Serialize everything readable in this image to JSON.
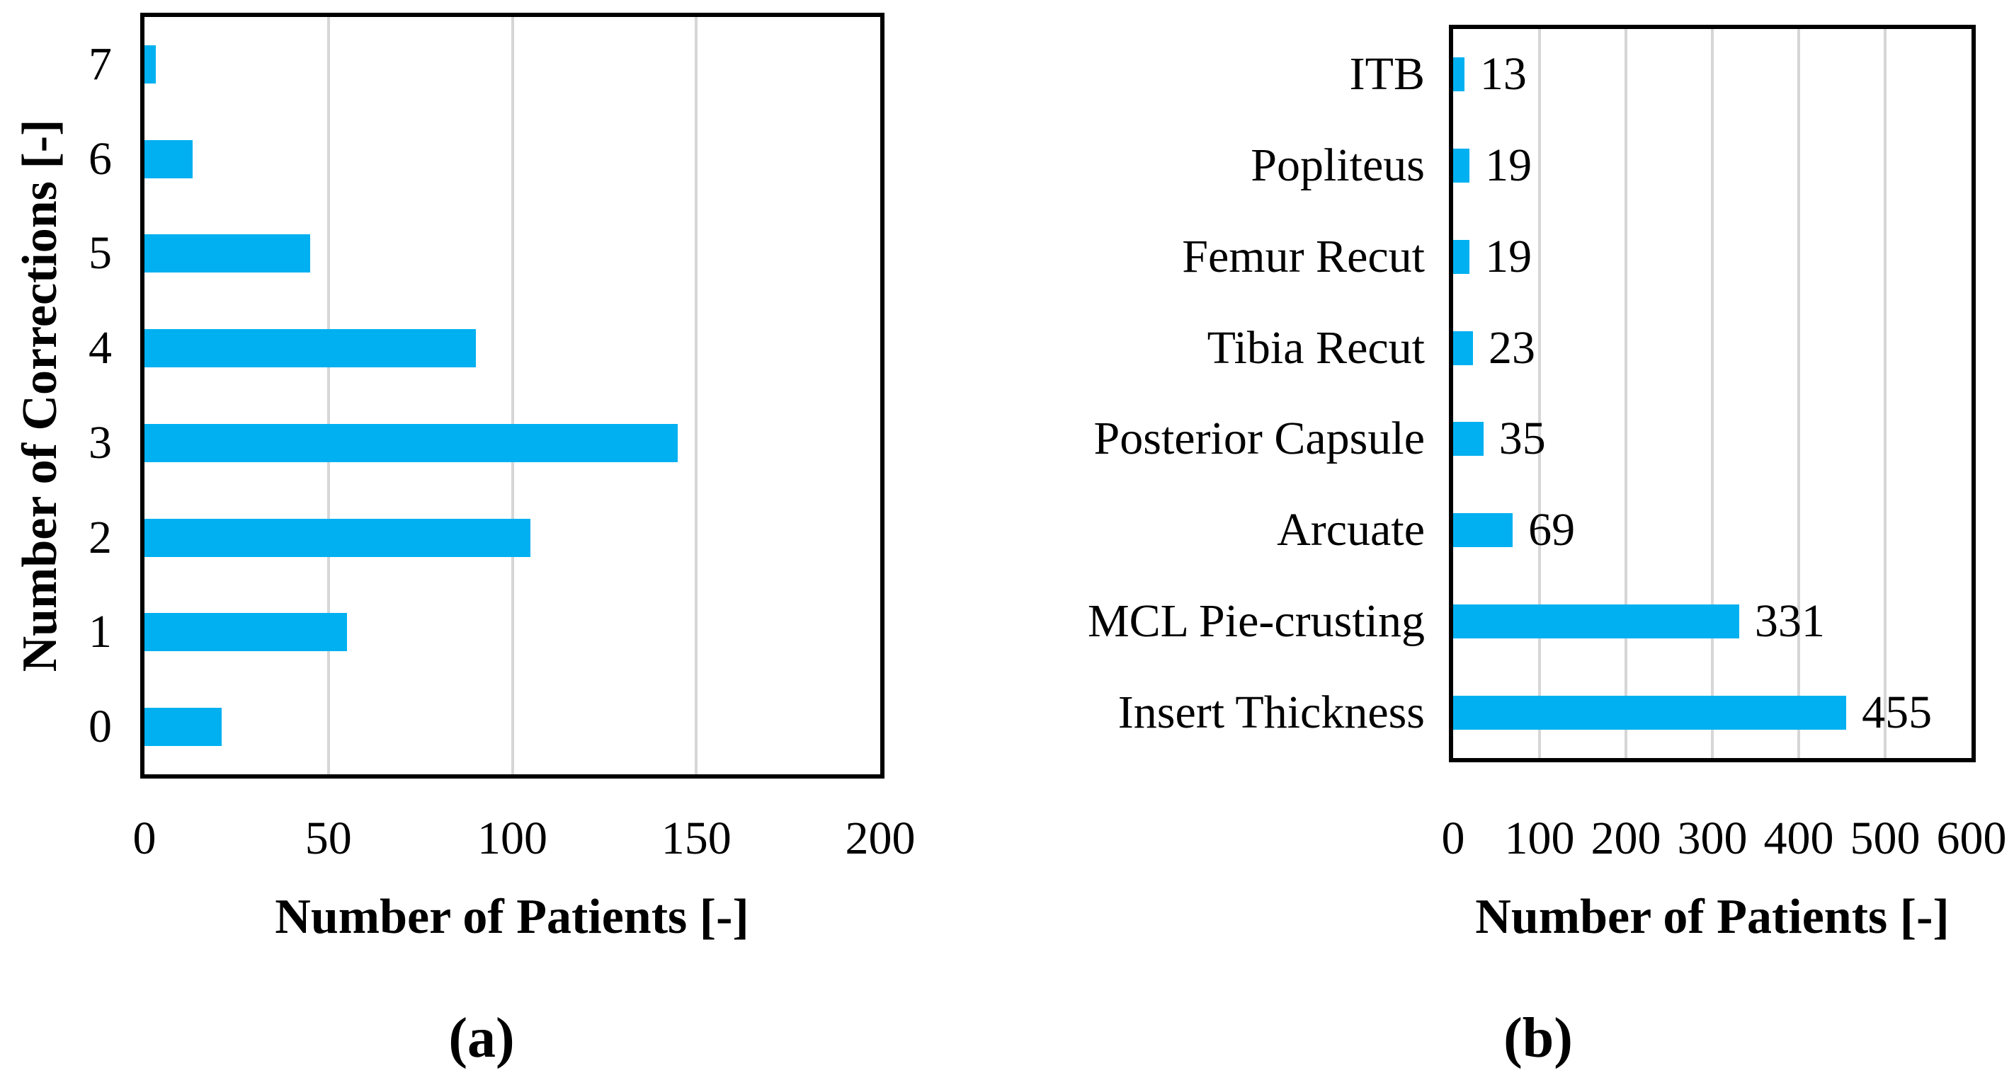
{
  "colors": {
    "bar": "#00B0F0",
    "gridline": "#D6D6D6",
    "plot_border": "#000000",
    "background": "#FFFFFF",
    "text": "#000000"
  },
  "chart_data": [
    {
      "panel": "a",
      "type": "bar",
      "orientation": "horizontal",
      "title": "",
      "xlabel": "Number of Patients [-]",
      "ylabel": "Number of Corrections [-]",
      "caption": "(a)",
      "category_order": "top-to-bottom",
      "categories": [
        "7",
        "6",
        "5",
        "4",
        "3",
        "2",
        "1",
        "0"
      ],
      "values": [
        3,
        13,
        45,
        90,
        145,
        105,
        55,
        21
      ],
      "xlim": [
        0,
        200
      ],
      "xticks": [
        0,
        50,
        100,
        150,
        200
      ],
      "grid": "vertical-gridlines-at-interior-ticks",
      "legend": "none",
      "show_value_labels": false,
      "bar_color": "#00B0F0"
    },
    {
      "panel": "b",
      "type": "bar",
      "orientation": "horizontal",
      "title": "",
      "xlabel": "Number of Patients [-]",
      "ylabel": "",
      "caption": "(b)",
      "category_order": "top-to-bottom",
      "categories": [
        "ITB",
        "Popliteus",
        "Femur Recut",
        "Tibia Recut",
        "Posterior Capsule",
        "Arcuate",
        "MCL Pie-crusting",
        "Insert Thickness"
      ],
      "values": [
        13,
        19,
        19,
        23,
        35,
        69,
        331,
        455
      ],
      "xlim": [
        0,
        600
      ],
      "xticks": [
        0,
        100,
        200,
        300,
        400,
        500,
        600
      ],
      "grid": "vertical-gridlines-at-interior-ticks",
      "legend": "none",
      "show_value_labels": true,
      "bar_color": "#00B0F0"
    }
  ]
}
